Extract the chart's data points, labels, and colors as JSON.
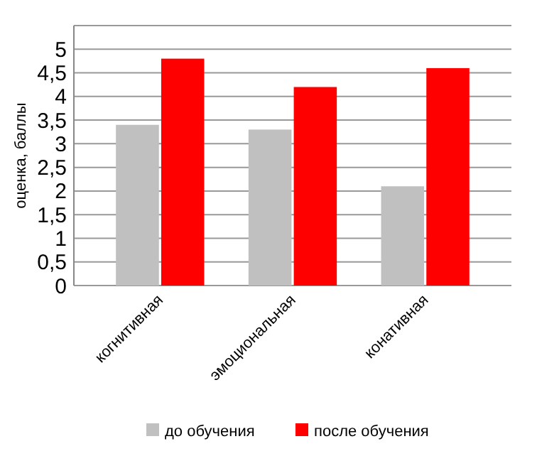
{
  "chart_data": {
    "type": "bar",
    "ylabel": "оценка, баллы",
    "categories": [
      "когнитивная",
      "эмоциональная",
      "конативная"
    ],
    "series": [
      {
        "name": "до обучения",
        "color": "#c0c0c0",
        "values": [
          3.4,
          3.3,
          2.1
        ]
      },
      {
        "name": "после обучения",
        "color": "#ff0000",
        "values": [
          4.8,
          4.2,
          4.6
        ]
      }
    ],
    "ylim": [
      0,
      5.5
    ],
    "yticks": [
      0,
      "0,5",
      1,
      "1,5",
      2,
      "2,5",
      3,
      "3,5",
      4,
      "4,5",
      5,
      {
        "value": 5.5,
        "label": null
      }
    ],
    "grid": "y",
    "legend": "bottom"
  }
}
